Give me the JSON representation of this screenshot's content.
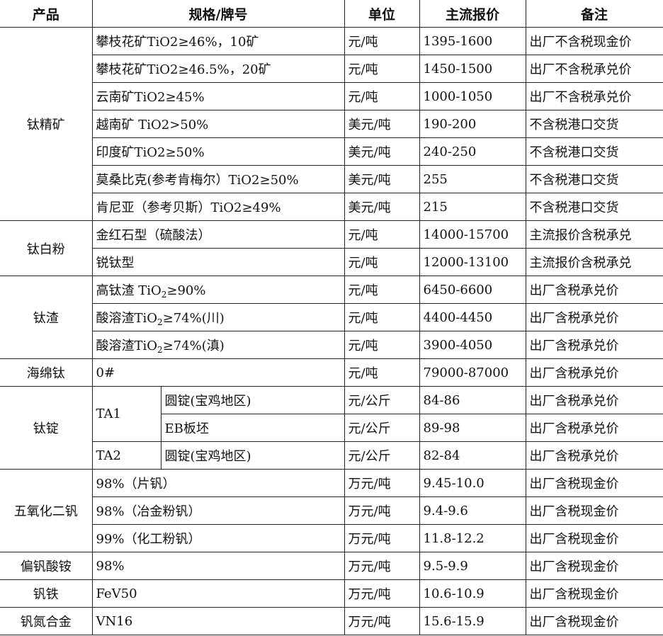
{
  "headers": [
    "产品",
    "规格/牌号",
    "单位",
    "主流报价",
    "备注"
  ],
  "groups": [
    {
      "product": "钛精矿",
      "rows": [
        {
          "spec": "攀枝花矿TiO2≥46%，10矿",
          "unit": "元/吨",
          "price": "1395-1600",
          "note": "出厂不含税现金价"
        },
        {
          "spec": "攀枝花矿TiO2≥46.5%，20矿",
          "unit": "元/吨",
          "price": "1450-1500",
          "note": "出厂不含税承兑价"
        },
        {
          "spec": "云南矿TiO2≥45%",
          "unit": "元/吨",
          "price": "1000-1050",
          "note": "出厂不含税承兑价"
        },
        {
          "spec": "越南矿 TiO2>50%",
          "unit": "美元/吨",
          "price": "190-200",
          "note": "不含税港口交货"
        },
        {
          "spec": "印度矿TiO2≥50%",
          "unit": "美元/吨",
          "price": "240-250",
          "note": "不含税港口交货"
        },
        {
          "spec": "莫桑比克(参考肯梅尔）TiO2≥50%",
          "unit": "美元/吨",
          "price": "255",
          "note": "不含税港口交货"
        },
        {
          "spec": "肯尼亚（参考贝斯）TiO2≥49%",
          "unit": "美元/吨",
          "price": "215",
          "note": "不含税港口交货"
        }
      ]
    },
    {
      "product": "钛白粉",
      "rows": [
        {
          "spec": "金红石型（硫酸法）",
          "unit": "元/吨",
          "price": "14000-15700",
          "note": "主流报价含税承兑"
        },
        {
          "spec": "锐钛型",
          "unit": "元/吨",
          "price": "12000-13100",
          "note": "主流报价含税承兑"
        }
      ]
    },
    {
      "product": "钛渣",
      "rows": [
        {
          "spec": "高钛渣 TiO",
          "spec_sub": "2",
          "spec_after": "≥90%",
          "unit": "元/吨",
          "price": "6450-6600",
          "note": "出厂含税承兑价"
        },
        {
          "spec": "酸溶渣TiO",
          "spec_sub": "2",
          "spec_after": "≥74%(川)",
          "unit": "元/吨",
          "price": "4400-4450",
          "note": "出厂含税承兑价"
        },
        {
          "spec": "酸溶渣TiO",
          "spec_sub": "2",
          "spec_after": "≥74%(滇)",
          "unit": "元/吨",
          "price": "3900-4050",
          "note": "出厂含税承兑价"
        }
      ]
    },
    {
      "product": "海绵钛",
      "rows": [
        {
          "spec": "0#",
          "unit": "元/吨",
          "price": "79000-87000",
          "note": "出厂含税承兑价"
        }
      ]
    },
    {
      "product": "钛锭",
      "subgroups": [
        {
          "grade": "TA1",
          "rows": [
            {
              "spec": "圆锭(宝鸡地区)",
              "unit": "元/公斤",
              "price": "84-86",
              "note": "出厂含税承兑价"
            },
            {
              "spec": "EB板坯",
              "unit": "元/公斤",
              "price": "89-98",
              "note": "出厂含税承兑价"
            }
          ]
        },
        {
          "grade": "TA2",
          "rows": [
            {
              "spec": "圆锭(宝鸡地区)",
              "unit": "元/公斤",
              "price": "82-84",
              "note": "出厂含税承兑价"
            }
          ]
        }
      ]
    },
    {
      "product": "五氧化二钒",
      "rows": [
        {
          "spec": "98%（片钒）",
          "unit": "万元/吨",
          "price": "9.45-10.0",
          "note": "出厂含税现金价"
        },
        {
          "spec": "98%（冶金粉钒）",
          "unit": "万元/吨",
          "price": "9.4-9.6",
          "note": "出厂含税现金价"
        },
        {
          "spec": "99%（化工粉钒）",
          "unit": "万元/吨",
          "price": "11.8-12.2",
          "note": "出厂含税现金价"
        }
      ]
    },
    {
      "product": "偏钒酸铵",
      "rows": [
        {
          "spec": "98%",
          "unit": "万元/吨",
          "price": "9.5-9.9",
          "note": "出厂含税现金价"
        }
      ]
    },
    {
      "product": "钒铁",
      "rows": [
        {
          "spec": "FeV50",
          "unit": "万元/吨",
          "price": "10.6-10.9",
          "note": "出厂含税现金价"
        }
      ]
    },
    {
      "product": "钒氮合金",
      "rows": [
        {
          "spec": "VN16",
          "unit": "万元/吨",
          "price": "15.6-15.9",
          "note": "出厂含税现金价"
        }
      ]
    }
  ]
}
